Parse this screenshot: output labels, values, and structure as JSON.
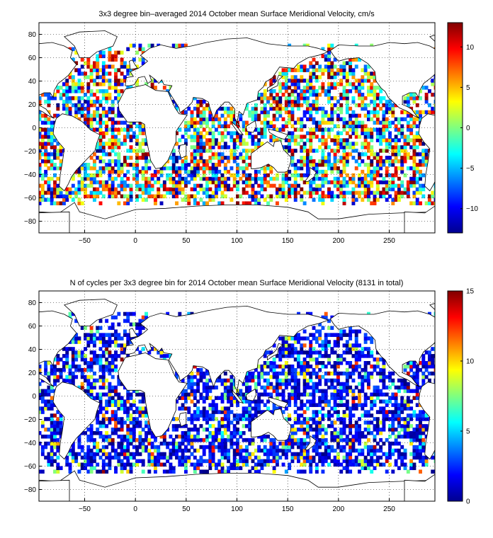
{
  "chart_data": [
    {
      "type": "heatmap",
      "title": "3x3 degree bin–averaged 2014 October mean Surface Meridional Velocity, cm/s",
      "xlabel": "",
      "ylabel": "",
      "xlim": [
        -95,
        295
      ],
      "ylim": [
        -90,
        90
      ],
      "x_ticks": [
        -50,
        0,
        50,
        100,
        150,
        200,
        250
      ],
      "x_tick_labels": [
        "−50",
        "0",
        "50",
        "100",
        "150",
        "200",
        "250"
      ],
      "y_ticks": [
        80,
        60,
        40,
        20,
        0,
        -20,
        -40,
        -60,
        -80
      ],
      "y_tick_labels": [
        "80",
        "60",
        "40",
        "20",
        "0",
        "−20",
        "−40",
        "−60",
        "−80"
      ],
      "grid": true,
      "bin_size_deg": 3,
      "colormap": "jet",
      "color_range": [
        -13,
        13
      ],
      "colorbar_ticks": [
        10,
        5,
        0,
        -5,
        -10
      ],
      "colorbar_tick_labels": [
        "10",
        "5",
        "0",
        "−5",
        "−10"
      ],
      "value_pattern": "scattered bins, mixed positive and negative values across all ocean basins between about 70N and 65S"
    },
    {
      "type": "heatmap",
      "title": "N of cycles per 3x3 degree bin for 2014 October mean Surface Meridional Velocity (8131 in total)",
      "xlabel": "",
      "ylabel": "",
      "xlim": [
        -95,
        295
      ],
      "ylim": [
        -90,
        90
      ],
      "x_ticks": [
        -50,
        0,
        50,
        100,
        150,
        200,
        250
      ],
      "x_tick_labels": [
        "−50",
        "0",
        "50",
        "100",
        "150",
        "200",
        "250"
      ],
      "y_ticks": [
        80,
        60,
        40,
        20,
        0,
        -20,
        -40,
        -60,
        -80
      ],
      "y_tick_labels": [
        "80",
        "60",
        "40",
        "20",
        "0",
        "−20",
        "−40",
        "−60",
        "−80"
      ],
      "grid": true,
      "bin_size_deg": 3,
      "colormap": "jet",
      "color_range": [
        0,
        15
      ],
      "colorbar_ticks": [
        15,
        10,
        5,
        0
      ],
      "colorbar_tick_labels": [
        "15",
        "10",
        "5",
        "0"
      ],
      "total_cycles": 8131,
      "value_pattern": "mostly low counts (0-4) with scattered higher bins in Mediterranean, NW Pacific and tropics"
    }
  ]
}
